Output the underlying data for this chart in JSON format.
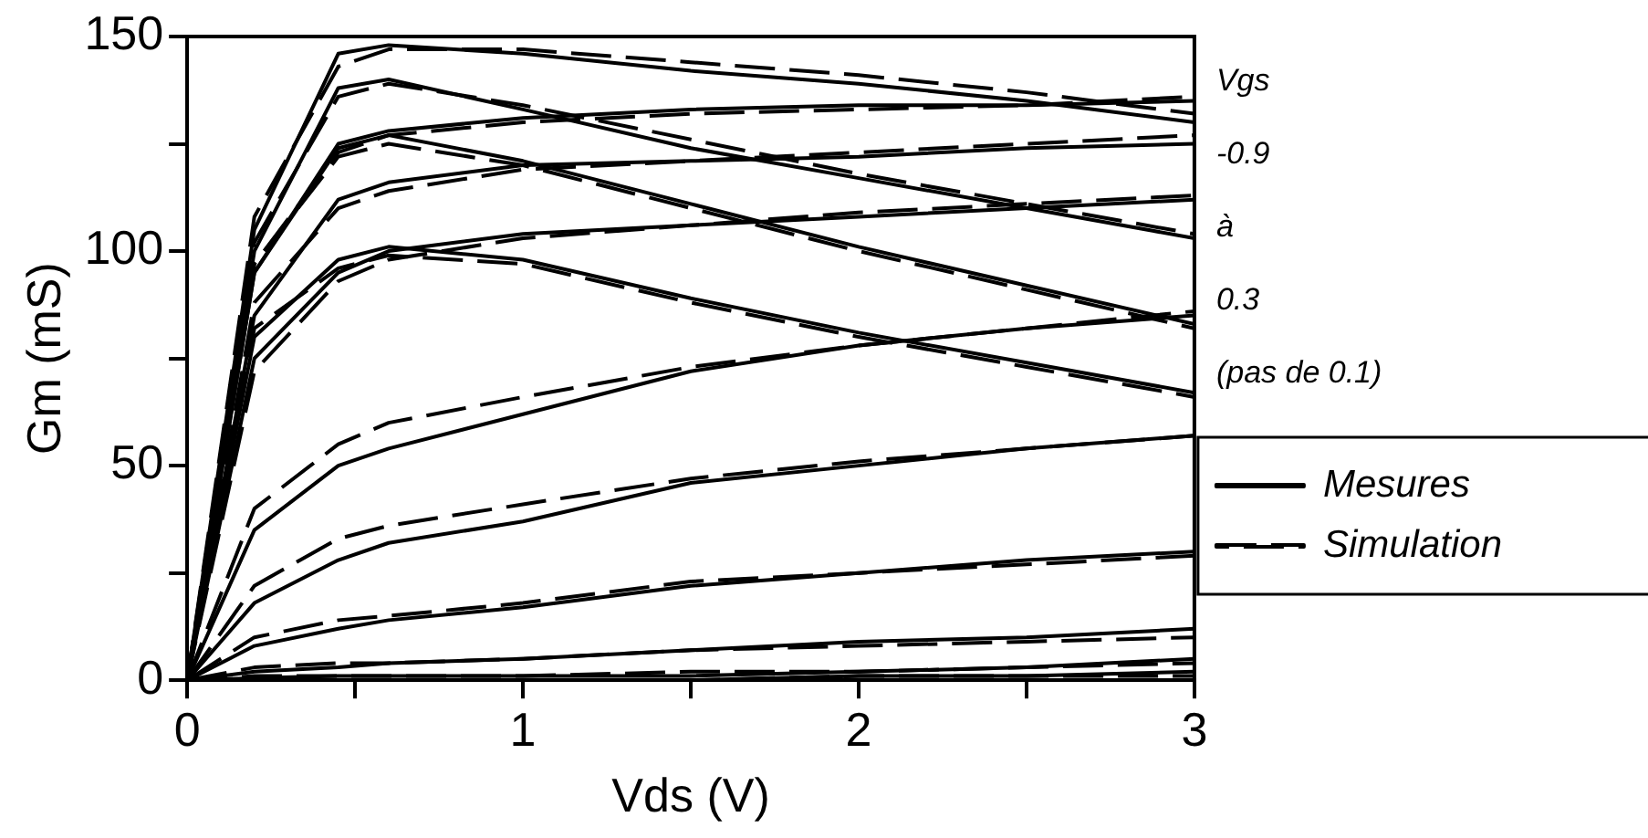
{
  "chart_data": {
    "type": "line",
    "xlabel": "Vds (V)",
    "ylabel": "Gm (mS)",
    "xlim": [
      0,
      3
    ],
    "xticks": [
      0,
      {
        "value": 0.5,
        "label": null
      },
      1,
      {
        "value": 1.5,
        "label": null
      },
      2,
      {
        "value": 2.5,
        "label": null
      },
      3
    ],
    "ylim": [
      0,
      150
    ],
    "yticks": [
      0,
      {
        "value": 25,
        "label": null
      },
      50,
      {
        "value": 75,
        "label": null
      },
      100,
      {
        "value": 125,
        "label": null
      },
      150
    ],
    "x": [
      0,
      0.2,
      0.45,
      0.6,
      1,
      1.5,
      2,
      2.5,
      3
    ],
    "grid": false,
    "marker": "none",
    "legend": "right",
    "annotations": [
      "Vgs",
      "-0.9",
      "à",
      "0.3",
      "(pas de 0.1)"
    ],
    "series": [
      {
        "name": "Mesures",
        "color": "#000000",
        "line_style": "solid",
        "values": [
          0,
          105,
          146,
          148,
          146,
          142,
          139,
          135,
          130
        ]
      },
      {
        "color": "#000000",
        "line_style": "solid",
        "values": [
          0,
          100,
          138,
          140,
          133,
          124,
          117,
          110,
          103
        ]
      },
      {
        "color": "#000000",
        "line_style": "solid",
        "values": [
          0,
          95,
          124,
          127,
          121,
          111,
          101,
          92,
          83
        ]
      },
      {
        "color": "#000000",
        "line_style": "solid",
        "values": [
          0,
          80,
          98,
          101,
          98,
          89,
          81,
          74,
          67
        ]
      },
      {
        "color": "#000000",
        "line_style": "solid",
        "values": [
          0,
          95,
          125,
          128,
          131,
          133,
          134,
          134,
          135
        ]
      },
      {
        "color": "#000000",
        "line_style": "solid",
        "values": [
          0,
          85,
          112,
          116,
          120,
          121,
          122,
          124,
          125
        ]
      },
      {
        "color": "#000000",
        "line_style": "solid",
        "values": [
          0,
          75,
          95,
          100,
          104,
          106,
          108,
          110,
          112
        ]
      },
      {
        "color": "#000000",
        "line_style": "solid",
        "values": [
          0,
          35,
          50,
          54,
          62,
          72,
          78,
          82,
          85
        ]
      },
      {
        "color": "#000000",
        "line_style": "solid",
        "values": [
          0,
          18,
          28,
          32,
          37,
          46,
          50,
          54,
          57
        ]
      },
      {
        "color": "#000000",
        "line_style": "solid",
        "values": [
          0,
          8,
          12,
          14,
          17,
          22,
          25,
          28,
          30
        ]
      },
      {
        "color": "#000000",
        "line_style": "solid",
        "values": [
          0,
          2,
          3,
          4,
          5,
          7,
          9,
          10,
          12
        ]
      },
      {
        "color": "#000000",
        "line_style": "solid",
        "values": [
          0,
          0.5,
          1,
          1,
          1,
          1,
          2,
          3,
          5
        ]
      },
      {
        "color": "#000000",
        "line_style": "solid",
        "values": [
          0,
          0,
          0,
          0,
          0,
          0,
          1,
          1,
          2
        ]
      },
      {
        "name": "Simulation",
        "color": "#000000",
        "line_style": "dashed",
        "values": [
          0,
          108,
          143,
          147,
          147,
          144,
          141,
          137,
          132
        ]
      },
      {
        "color": "#000000",
        "line_style": "dashed",
        "values": [
          0,
          102,
          136,
          139,
          134,
          126,
          118,
          111,
          104
        ]
      },
      {
        "color": "#000000",
        "line_style": "dashed",
        "values": [
          0,
          97,
          122,
          125,
          120,
          110,
          100,
          91,
          82
        ]
      },
      {
        "color": "#000000",
        "line_style": "dashed",
        "values": [
          0,
          82,
          96,
          99,
          97,
          88,
          80,
          73,
          66
        ]
      },
      {
        "color": "#000000",
        "line_style": "dashed",
        "values": [
          0,
          97,
          123,
          127,
          130,
          132,
          133,
          134,
          136
        ]
      },
      {
        "color": "#000000",
        "line_style": "dashed",
        "values": [
          0,
          88,
          110,
          114,
          119,
          121,
          123,
          125,
          127
        ]
      },
      {
        "color": "#000000",
        "line_style": "dashed",
        "values": [
          0,
          72,
          93,
          98,
          103,
          106,
          109,
          111,
          113
        ]
      },
      {
        "color": "#000000",
        "line_style": "dashed",
        "values": [
          0,
          40,
          55,
          60,
          66,
          73,
          78,
          82,
          86
        ]
      },
      {
        "color": "#000000",
        "line_style": "dashed",
        "values": [
          0,
          22,
          33,
          36,
          41,
          47,
          51,
          54,
          57
        ]
      },
      {
        "color": "#000000",
        "line_style": "dashed",
        "values": [
          0,
          10,
          14,
          15,
          18,
          23,
          25,
          27,
          29
        ]
      },
      {
        "color": "#000000",
        "line_style": "dashed",
        "values": [
          0,
          3,
          4,
          4,
          5,
          7,
          8,
          9,
          10
        ]
      },
      {
        "color": "#000000",
        "line_style": "dashed",
        "values": [
          0,
          1,
          1,
          1,
          1,
          2,
          2,
          3,
          4
        ]
      },
      {
        "color": "#000000",
        "line_style": "dashed",
        "values": [
          0,
          0,
          0,
          0,
          0,
          0,
          1,
          1,
          1
        ]
      }
    ]
  }
}
